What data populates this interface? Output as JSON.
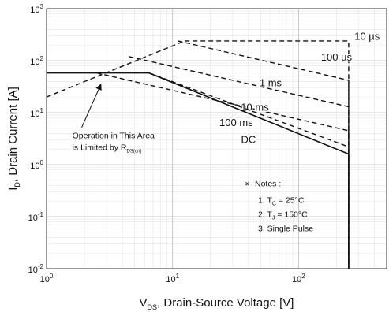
{
  "chart_data": {
    "type": "line",
    "xscale": "log",
    "yscale": "log",
    "xlim": [
      1,
      500
    ],
    "ylim": [
      0.01,
      1000
    ],
    "grid": true,
    "xlabel": {
      "pre": "V",
      "sub": "DS",
      "post": ", Drain-Source Voltage [V]"
    },
    "ylabel": {
      "pre": "I",
      "sub": "D",
      "post": ", Drain Current [A]"
    },
    "x_ticks": [
      {
        "value": 1,
        "base": "10",
        "exp": "0"
      },
      {
        "value": 10,
        "base": "10",
        "exp": "1"
      },
      {
        "value": 100,
        "base": "10",
        "exp": "2"
      }
    ],
    "y_ticks": [
      {
        "value": 0.01,
        "base": "10",
        "exp": "-2"
      },
      {
        "value": 0.1,
        "base": "10",
        "exp": "-1"
      },
      {
        "value": 1,
        "base": "10",
        "exp": "0"
      },
      {
        "value": 10,
        "base": "10",
        "exp": "1"
      },
      {
        "value": 100,
        "base": "10",
        "exp": "2"
      },
      {
        "value": 1000,
        "base": "10",
        "exp": "3"
      }
    ],
    "series": [
      {
        "name": "10 µs",
        "style": "dashed",
        "label_pos": [
          350,
          250
        ],
        "points": [
          [
            12.5,
            240
          ],
          [
            250,
            240
          ],
          [
            250,
            0.01
          ]
        ]
      },
      {
        "name": "100 µs",
        "style": "dashed",
        "label_pos": [
          200,
          100
        ],
        "points": [
          [
            11,
            240
          ],
          [
            250,
            42
          ],
          [
            250,
            0.01
          ]
        ]
      },
      {
        "name": "1 ms",
        "style": "dashed",
        "label_pos": [
          60,
          32
        ],
        "points": [
          [
            4.5,
            120
          ],
          [
            250,
            13
          ],
          [
            250,
            0.01
          ]
        ]
      },
      {
        "name": "10 ms",
        "style": "dashed",
        "label_pos": [
          45,
          11
        ],
        "points": [
          [
            2.5,
            58
          ],
          [
            250,
            4.5
          ],
          [
            250,
            0.01
          ]
        ]
      },
      {
        "name": "100 ms",
        "style": "dashed",
        "label_pos": [
          32,
          5.5
        ],
        "points": [
          [
            6.5,
            58
          ],
          [
            250,
            2.2
          ],
          [
            250,
            0.01
          ]
        ]
      },
      {
        "name": "DC",
        "style": "solid",
        "label_pos": [
          40,
          2.6
        ],
        "points": [
          [
            1,
            58
          ],
          [
            6.5,
            58
          ],
          [
            250,
            1.6
          ],
          [
            250,
            0.01
          ]
        ]
      },
      {
        "name": "",
        "style": "dashed",
        "points": [
          [
            1,
            20
          ],
          [
            12.5,
            240
          ]
        ]
      }
    ],
    "annotation": {
      "line1": "Operation in This Area",
      "line2_pre": "is Limited by R",
      "line2_sub": "DS(on)",
      "text_pos": [
        1.6,
        3.2
      ],
      "arrow_from": [
        1.9,
        5.2
      ],
      "arrow_to": [
        2.7,
        35
      ]
    },
    "notes": {
      "title": "Notes :",
      "items": [
        {
          "pre": "1. T",
          "sub": "C",
          "post": " = 25°C"
        },
        {
          "pre": "2. T",
          "sub": "J",
          "post": " = 150°C"
        },
        {
          "pre": "3. Single Pulse",
          "sub": "",
          "post": ""
        }
      ],
      "pos": [
        45,
        0.38
      ]
    }
  }
}
